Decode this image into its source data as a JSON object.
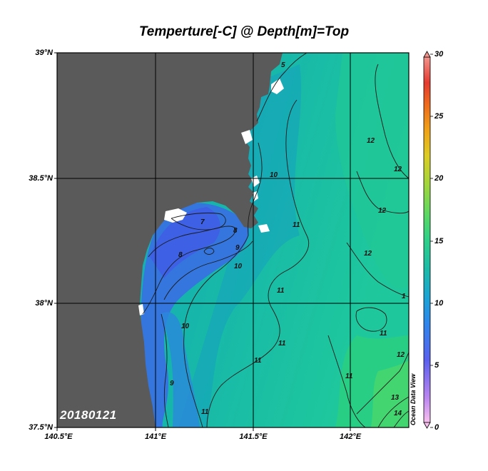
{
  "title": "Temperture[-C] @ Depth[m]=Top",
  "date_label": "20180121",
  "watermark": "Ocean Data View",
  "lat_labels": [
    "39°N",
    "38.5°N",
    "38°N",
    "37.5°N"
  ],
  "lon_labels": [
    "140.5°E",
    "141°E",
    "141.5°E",
    "142°E"
  ],
  "colorbar": {
    "ticks": [
      "30",
      "25",
      "20",
      "15",
      "10",
      "5",
      "0"
    ],
    "colors": [
      "#f8b6e6",
      "#b884f0",
      "#5a60ee",
      "#2e86ec",
      "#1ca3d6",
      "#1cbba8",
      "#2ed088",
      "#5cd862",
      "#a0d63c",
      "#dccc24",
      "#f0a218",
      "#ee6a1c",
      "#e43a30",
      "#f28a84"
    ]
  },
  "contour_labels": [
    "7",
    "8",
    "8",
    "9",
    "10",
    "10",
    "11",
    "11",
    "11",
    "11",
    "11",
    "12",
    "12",
    "12",
    "12",
    "1",
    "12",
    "13",
    "14",
    "9",
    "10",
    "11",
    "11",
    "5"
  ],
  "colors": {
    "land": "#5a5a5a",
    "sea_shelf": "#3a70de",
    "sea_mid": "#12a8b8",
    "sea_off": "#18c8a0"
  }
}
